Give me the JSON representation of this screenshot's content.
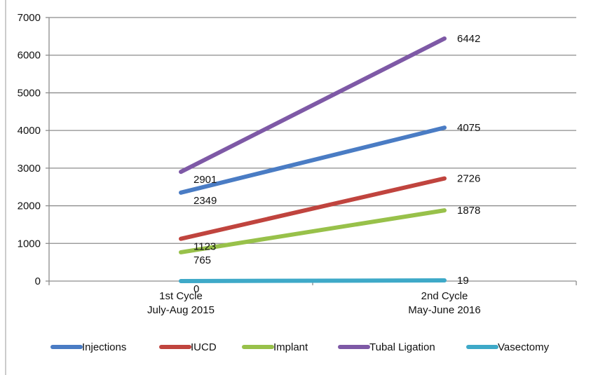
{
  "chart_data": {
    "type": "line",
    "title": "",
    "xlabel": "",
    "ylabel": "",
    "categories": [
      [
        "1st Cycle",
        "July-Aug 2015"
      ],
      [
        "2nd Cycle",
        "May-June 2016"
      ]
    ],
    "ylim": [
      0,
      7000
    ],
    "yticks": [
      0,
      1000,
      2000,
      3000,
      4000,
      5000,
      6000,
      7000
    ],
    "grid": true,
    "legend_position": "bottom",
    "series": [
      {
        "name": "Injections",
        "color": "#4a7cc4",
        "values": [
          2349,
          4075
        ],
        "labels": [
          "2349",
          "4075"
        ]
      },
      {
        "name": "IUCD",
        "color": "#c0443e",
        "values": [
          1123,
          2726
        ],
        "labels": [
          "1123",
          "2726"
        ]
      },
      {
        "name": "Implant",
        "color": "#98c14a",
        "values": [
          765,
          1878
        ],
        "labels": [
          "765",
          "1878"
        ]
      },
      {
        "name": "Tubal Ligation",
        "color": "#7e59a6",
        "values": [
          2901,
          6442
        ],
        "labels": [
          "2901",
          "6442"
        ]
      },
      {
        "name": "Vasectomy",
        "color": "#3ea9c8",
        "values": [
          0,
          19
        ],
        "labels": [
          "0",
          "19"
        ]
      }
    ]
  }
}
